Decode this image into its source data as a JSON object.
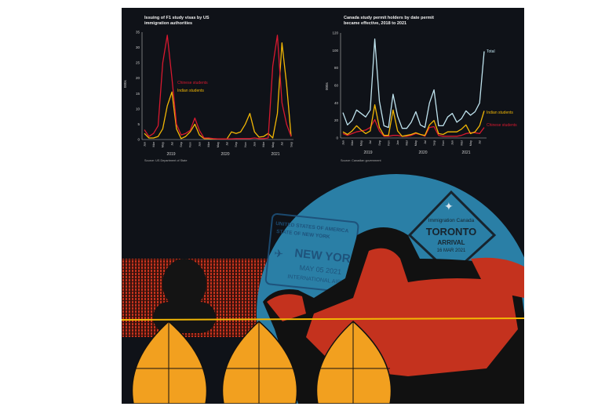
{
  "colors": {
    "background": "#0f1218",
    "chinese": "#d7192f",
    "indian": "#f2b705",
    "total": "#bfe3ee",
    "axis": "#cfcfcf",
    "circle": "#2a7fa6",
    "red_pattern": "#c4321e",
    "globe": "#f2a01f"
  },
  "chart_data": [
    {
      "type": "line",
      "title": "Issuing of F1 study visas by US immigration authorities",
      "title_lines": [
        "Issuing of F1 study visas by US",
        "immigration authorities"
      ],
      "ylabel": "000s",
      "ylim": [
        0,
        35
      ],
      "yticks": [
        "0",
        "5",
        "10",
        "15",
        "20",
        "25",
        "30",
        "35"
      ],
      "x_start": "2019-01",
      "x_end": "2021-09",
      "xtick_labels": [
        "Jan",
        "Mar",
        "May",
        "Jul",
        "Sep",
        "Nov",
        "Jan",
        "Mar",
        "May",
        "Jul",
        "Sep",
        "Nov",
        "Jan",
        "Mar",
        "May",
        "Jul",
        "Sep"
      ],
      "year_labels": [
        "2019",
        "2020",
        "2021"
      ],
      "source": "Source: US Department of State",
      "series": [
        {
          "name": "Chinese students",
          "values": [
            3.2,
            1,
            2,
            4.5,
            25,
            34,
            20,
            5,
            1.5,
            2,
            3,
            7,
            3,
            0.5,
            0.5,
            0.3,
            0.2,
            0.2,
            0.2,
            0.2,
            0.3,
            0.3,
            0.3,
            0.3,
            0.5,
            0.3,
            0.3,
            0.5,
            24,
            34,
            12,
            5,
            1
          ]
        },
        {
          "name": "Indian students",
          "values": [
            2,
            0.5,
            0.5,
            1,
            3.5,
            11,
            15.5,
            3.5,
            0.3,
            1,
            2.5,
            5,
            1.5,
            0.3,
            0.3,
            0.2,
            0.2,
            0.2,
            0.2,
            2.5,
            2,
            2.5,
            5,
            8.5,
            2.5,
            0.8,
            1,
            2,
            0.5,
            8.5,
            31.5,
            18,
            1
          ]
        }
      ]
    },
    {
      "type": "line",
      "title": "Canada study permit holders by date permit became effective, 2018 to 2021",
      "title_lines": [
        "Canada study permit holders by date permit",
        "became effective, 2018 to 2021"
      ],
      "ylabel": "000s",
      "ylim": [
        0,
        120
      ],
      "yticks": [
        "0",
        "20",
        "40",
        "60",
        "80",
        "100",
        "120"
      ],
      "x_start": "2019-01",
      "x_end": "2021-08",
      "xtick_labels": [
        "Jan",
        "Mar",
        "May",
        "Jul",
        "Sep",
        "Nov",
        "Jan",
        "Mar",
        "May",
        "Jul",
        "Sep",
        "Nov",
        "Jan",
        "Mar",
        "May",
        "Jul"
      ],
      "year_labels": [
        "2019",
        "2020",
        "2021"
      ],
      "source": "Source: Canadian government",
      "series": [
        {
          "name": "Total",
          "values": [
            29,
            15,
            20,
            32,
            28,
            24,
            32,
            113,
            42,
            14,
            12,
            50,
            25,
            11,
            11,
            18,
            30,
            15,
            12,
            40,
            55,
            14,
            14,
            24,
            28,
            18,
            22,
            31,
            26,
            30,
            40,
            99
          ]
        },
        {
          "name": "Indian students",
          "values": [
            7,
            4,
            8,
            14,
            9,
            5,
            8,
            38,
            12,
            3,
            3,
            32,
            8,
            2,
            3,
            4,
            6,
            4,
            3,
            15,
            20,
            5,
            4,
            7,
            7,
            7,
            10,
            15,
            5,
            7,
            14,
            31
          ]
        },
        {
          "name": "Chinese students",
          "values": [
            5,
            3,
            5,
            7,
            8,
            9,
            12,
            21,
            8,
            2,
            2,
            3,
            3,
            2,
            2,
            3,
            5,
            4,
            2,
            12,
            13,
            3,
            2,
            2,
            2,
            2,
            3,
            5,
            6,
            6,
            5,
            12
          ]
        }
      ]
    }
  ],
  "illustration": {
    "us_stamp": {
      "line1": "UNITED STATES OF AMERICA",
      "line2": "STATE OF NEW YORK",
      "city": "NEW YORK",
      "date": "MAY 05 2021",
      "airport": "INTERNATIONAL AIRPORT"
    },
    "canada_stamp": {
      "agency": "Immigration Canada",
      "city": "TORONTO",
      "type": "ARRIVAL",
      "date": "16 MAR 2021"
    }
  }
}
